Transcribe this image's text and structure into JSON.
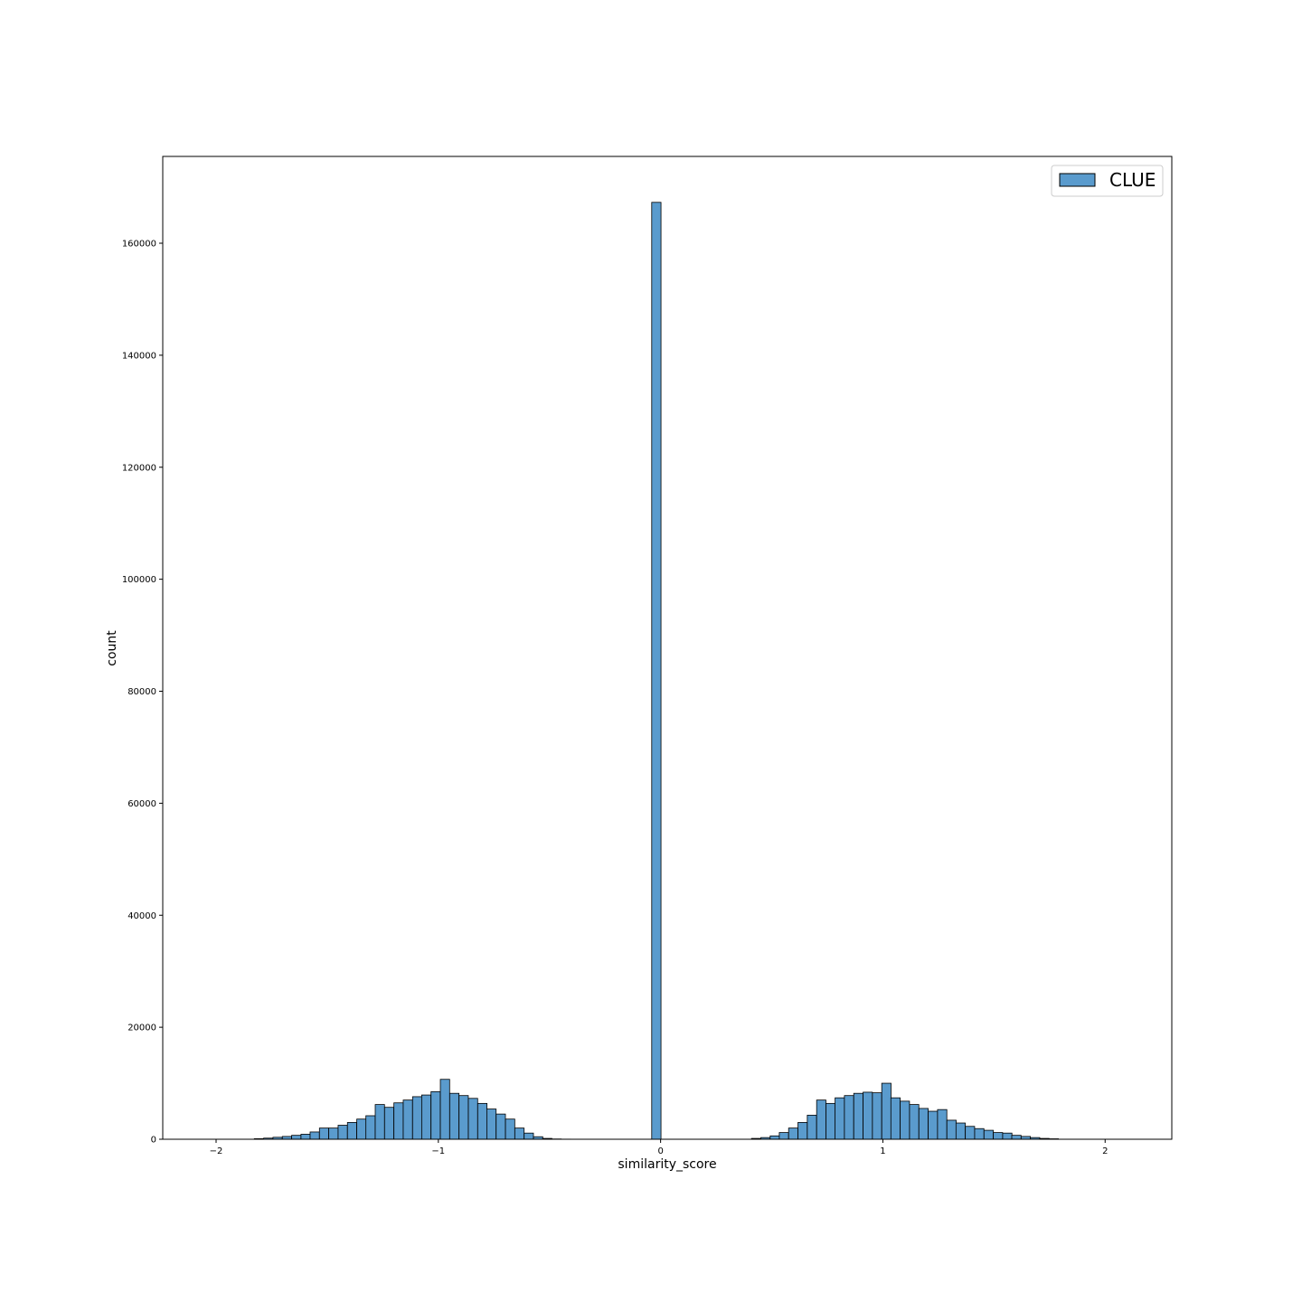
{
  "chart_data": {
    "type": "bar",
    "xlabel": "similarity_score",
    "ylabel": "count",
    "xlim": [
      -2.24,
      2.3
    ],
    "ylim": [
      0,
      175500
    ],
    "xticks": [
      -2,
      -1,
      0,
      1,
      2
    ],
    "xtick_labels": [
      "−2",
      "−1",
      "0",
      "1",
      "2"
    ],
    "yticks": [
      0,
      20000,
      40000,
      60000,
      80000,
      100000,
      120000,
      140000,
      160000
    ],
    "ytick_labels": [
      "0",
      "20000",
      "40000",
      "60000",
      "80000",
      "100000",
      "120000",
      "140000",
      "160000"
    ],
    "bin_width": 0.0418,
    "grid": false,
    "legend_position": "upper-right",
    "bar_color": "#5a9bcd",
    "edge_color": "#000000",
    "series": [
      {
        "name": "CLUE",
        "bin_starts": [
          -1.828,
          -1.786,
          -1.744,
          -1.702,
          -1.66,
          -1.618,
          -1.577,
          -1.535,
          -1.493,
          -1.451,
          -1.409,
          -1.367,
          -1.326,
          -1.284,
          -1.242,
          -1.2,
          -1.158,
          -1.116,
          -1.075,
          -1.033,
          -0.991,
          -0.949,
          -0.907,
          -0.865,
          -0.823,
          -0.782,
          -0.74,
          -0.698,
          -0.656,
          -0.614,
          -0.572,
          -0.531,
          -0.489,
          -0.447,
          -0.04,
          0.409,
          0.451,
          0.493,
          0.534,
          0.576,
          0.618,
          0.66,
          0.702,
          0.744,
          0.785,
          0.827,
          0.869,
          0.911,
          0.953,
          0.995,
          1.036,
          1.078,
          1.12,
          1.162,
          1.204,
          1.246,
          1.288,
          1.329,
          1.371,
          1.413,
          1.455,
          1.497,
          1.539,
          1.58,
          1.622,
          1.664,
          1.706,
          1.748
        ],
        "values": [
          100,
          200,
          350,
          500,
          700,
          900,
          1300,
          2000,
          2000,
          2500,
          3000,
          3600,
          4200,
          6200,
          5700,
          6500,
          7000,
          7600,
          7900,
          8500,
          10700,
          8200,
          7800,
          7300,
          6400,
          5400,
          4500,
          3600,
          2000,
          1100,
          450,
          150,
          50,
          20,
          167300,
          150,
          300,
          600,
          1200,
          2000,
          3000,
          4300,
          7000,
          6400,
          7400,
          7800,
          8200,
          8400,
          8300,
          10000,
          7400,
          6800,
          6200,
          5500,
          5000,
          5300,
          3400,
          2900,
          2300,
          1900,
          1600,
          1200,
          1100,
          700,
          500,
          300,
          150,
          80
        ]
      }
    ]
  }
}
